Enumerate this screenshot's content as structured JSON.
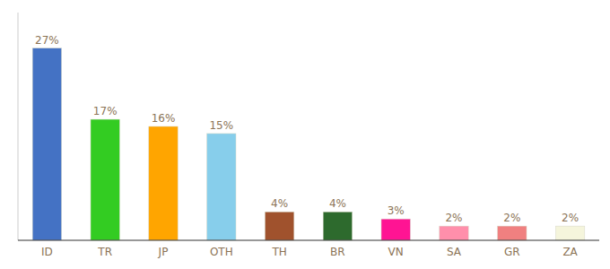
{
  "chart_data": {
    "type": "bar",
    "categories": [
      "ID",
      "TR",
      "JP",
      "OTH",
      "TH",
      "BR",
      "VN",
      "SA",
      "GR",
      "ZA"
    ],
    "values": [
      27,
      17,
      16,
      15,
      4,
      4,
      3,
      2,
      2,
      2
    ],
    "value_labels": [
      "27%",
      "17%",
      "16%",
      "15%",
      "4%",
      "4%",
      "3%",
      "2%",
      "2%",
      "2%"
    ],
    "colors": [
      "#4472C4",
      "#33CC22",
      "#FFA500",
      "#87CEEB",
      "#A0522D",
      "#2D6A2D",
      "#FF1493",
      "#FF8FAB",
      "#F08080",
      "#F5F5DC"
    ],
    "ylim": [
      0,
      32
    ],
    "data_labels": true,
    "tick_labels": "x",
    "grid": false
  }
}
